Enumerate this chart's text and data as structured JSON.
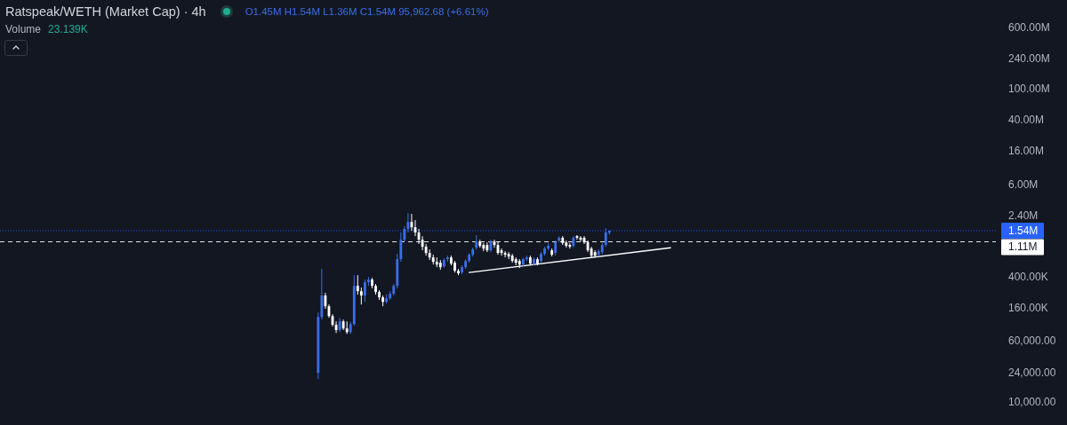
{
  "chart_data": {
    "type": "candlestick",
    "title": "Ratspeak/WETH (Market Cap) · 4h",
    "annotations": [
      "O1.45M H1.54M L1.36M C1.54M 95,962.68 (+6.61%)",
      "Volume",
      "23.139K"
    ],
    "categories": [
      null,
      null,
      null,
      null,
      null,
      null,
      null,
      null,
      null,
      null,
      null,
      null,
      null,
      null,
      null,
      null,
      null,
      null,
      null,
      null,
      null,
      null,
      null,
      null,
      null,
      null,
      null,
      null,
      null,
      null,
      null,
      null,
      null,
      null,
      null,
      null,
      null,
      null,
      null,
      null,
      null,
      null,
      null,
      null,
      null,
      null,
      null,
      null,
      null,
      null,
      null,
      null,
      null,
      null,
      null,
      null,
      null,
      null,
      null,
      null,
      null,
      null,
      null,
      null,
      null,
      null,
      null,
      null,
      null,
      null,
      null,
      null,
      null,
      null,
      null,
      null,
      null,
      null,
      null,
      null,
      null,
      null,
      null,
      null,
      null,
      null,
      null,
      null,
      null,
      null,
      null,
      null,
      null,
      null,
      null,
      null,
      null,
      null,
      null,
      null,
      null,
      null,
      null,
      null,
      null,
      null,
      null,
      null,
      null,
      null,
      null,
      null,
      null,
      null,
      null,
      null,
      null,
      null,
      null,
      null,
      null,
      null,
      null,
      null,
      null,
      null,
      null,
      null,
      null,
      null,
      null,
      null,
      null,
      null,
      null,
      null,
      null,
      null,
      null,
      null,
      null,
      null,
      null,
      null,
      null,
      null,
      null,
      null,
      null,
      null,
      null,
      null,
      null,
      null,
      null,
      null,
      null,
      null,
      null,
      null,
      null,
      null,
      null,
      null,
      null,
      null,
      null,
      null,
      null,
      null,
      null,
      null,
      null,
      null,
      null,
      null,
      null,
      null,
      null,
      null,
      null,
      null,
      null,
      null,
      null,
      null,
      null,
      null,
      null,
      null,
      null,
      null,
      null,
      null,
      null,
      null,
      null,
      null,
      null,
      null,
      null,
      null,
      null,
      null,
      null,
      null,
      null,
      null,
      null,
      null,
      null,
      null,
      null,
      null,
      null,
      null,
      null,
      null,
      null,
      null,
      null,
      null,
      null,
      null,
      null,
      null,
      null,
      null,
      null,
      null,
      null,
      null,
      null,
      null,
      null,
      null,
      null,
      null,
      null,
      null,
      null,
      null,
      null,
      null,
      null,
      null,
      null,
      null,
      null,
      null,
      null,
      null,
      null,
      null,
      null,
      null,
      null,
      null,
      null,
      null,
      null,
      null,
      null,
      null,
      null,
      null,
      null,
      null,
      null,
      null,
      null,
      null,
      null,
      null,
      null,
      null,
      null
    ],
    "ohlc": [
      null,
      null,
      null,
      null,
      null,
      null,
      null,
      null,
      null,
      null,
      null,
      null,
      null,
      null,
      null,
      null,
      null,
      null,
      null,
      null,
      null,
      null,
      null,
      null,
      null,
      null,
      null,
      null,
      null,
      null,
      null,
      null,
      null,
      null,
      null,
      null,
      null,
      null,
      null,
      null,
      null,
      null,
      null,
      null,
      null,
      null,
      null,
      null,
      null,
      null,
      null,
      null,
      null,
      null,
      null,
      null,
      null,
      null,
      null,
      null,
      null,
      null,
      null,
      null,
      null,
      null,
      null,
      null,
      null,
      null,
      null,
      null,
      null,
      null,
      null,
      null,
      null,
      null,
      null,
      null,
      null,
      null,
      null,
      null,
      null,
      null,
      null,
      null,
      [
        23600,
        139000,
        19700,
        122000
      ],
      [
        122000,
        500000,
        113000,
        229000
      ],
      [
        229000,
        247000,
        155000,
        167000
      ],
      [
        167000,
        176000,
        119000,
        125000
      ],
      [
        125000,
        132000,
        92000,
        97000
      ],
      [
        97000,
        107000,
        76000,
        83000
      ],
      [
        83000,
        119000,
        78000,
        107000
      ],
      [
        107000,
        113000,
        83000,
        87000
      ],
      [
        87000,
        107000,
        74000,
        78000
      ],
      [
        78000,
        105000,
        74000,
        99000
      ],
      [
        99000,
        416000,
        94000,
        304000
      ],
      [
        304000,
        416000,
        235000,
        260000
      ],
      [
        260000,
        289000,
        176000,
        229000
      ],
      [
        229000,
        366000,
        190000,
        338000
      ],
      [
        338000,
        395000,
        304000,
        366000
      ],
      [
        366000,
        385000,
        282000,
        304000
      ],
      [
        304000,
        321000,
        235000,
        254000
      ],
      [
        254000,
        267000,
        201000,
        217000
      ],
      [
        217000,
        229000,
        167000,
        190000
      ],
      [
        190000,
        235000,
        181000,
        211000
      ],
      [
        211000,
        260000,
        201000,
        241000
      ],
      [
        241000,
        321000,
        229000,
        304000
      ],
      [
        304000,
        778000,
        282000,
        666000
      ],
      [
        666000,
        1460000,
        616000,
        1180000
      ],
      [
        1180000,
        1750000,
        1120000,
        1620000
      ],
      [
        1620000,
        2580000,
        1460000,
        1990000
      ],
      [
        1990000,
        2520000,
        1530000,
        1700000
      ],
      [
        1700000,
        2100000,
        1310000,
        1460000
      ],
      [
        1460000,
        1620000,
        1040000,
        1180000
      ],
      [
        1180000,
        1310000,
        864000,
        959000
      ],
      [
        959000,
        1040000,
        739000,
        799000
      ],
      [
        799000,
        887000,
        649000,
        701000
      ],
      [
        701000,
        759000,
        569000,
        616000
      ],
      [
        616000,
        701000,
        526000,
        569000
      ],
      [
        600000,
        649000,
        487000,
        526000
      ],
      [
        540000,
        683000,
        513000,
        649000
      ],
      [
        666000,
        739000,
        616000,
        701000
      ],
      [
        701000,
        739000,
        555000,
        585000
      ],
      [
        600000,
        632000,
        450000,
        474000
      ],
      [
        474000,
        500000,
        416000,
        439000
      ],
      [
        450000,
        555000,
        427000,
        526000
      ],
      [
        526000,
        666000,
        500000,
        632000
      ],
      [
        632000,
        799000,
        600000,
        759000
      ],
      [
        759000,
        934000,
        720000,
        887000
      ],
      [
        934000,
        1350000,
        887000,
        1120000
      ],
      [
        1120000,
        1180000,
        934000,
        984000
      ],
      [
        1010000,
        1070000,
        842000,
        910000
      ],
      [
        1010000,
        1090000,
        820000,
        864000
      ],
      [
        864000,
        1180000,
        820000,
        1120000
      ],
      [
        1120000,
        1180000,
        934000,
        1010000
      ],
      [
        1010000,
        1120000,
        759000,
        799000
      ],
      [
        864000,
        910000,
        739000,
        799000
      ],
      [
        799000,
        842000,
        701000,
        759000
      ],
      [
        778000,
        820000,
        666000,
        720000
      ],
      [
        739000,
        778000,
        600000,
        632000
      ],
      [
        666000,
        701000,
        555000,
        600000
      ],
      [
        632000,
        666000,
        513000,
        569000
      ],
      [
        569000,
        701000,
        540000,
        666000
      ],
      [
        666000,
        739000,
        632000,
        701000
      ],
      [
        701000,
        739000,
        555000,
        585000
      ],
      [
        585000,
        701000,
        555000,
        666000
      ],
      [
        666000,
        701000,
        555000,
        585000
      ],
      [
        632000,
        820000,
        585000,
        778000
      ],
      [
        778000,
        959000,
        739000,
        910000
      ],
      [
        910000,
        1070000,
        864000,
        984000
      ],
      [
        864000,
        910000,
        720000,
        759000
      ],
      [
        799000,
        1150000,
        739000,
        1090000
      ],
      [
        1150000,
        1310000,
        1090000,
        1250000
      ],
      [
        1250000,
        1310000,
        1010000,
        1070000
      ],
      [
        1090000,
        1150000,
        934000,
        984000
      ],
      [
        1010000,
        1070000,
        910000,
        959000
      ],
      [
        984000,
        1310000,
        934000,
        1250000
      ],
      [
        1310000,
        1350000,
        1180000,
        1250000
      ],
      [
        1250000,
        1310000,
        1120000,
        1180000
      ],
      [
        1250000,
        1310000,
        1040000,
        1090000
      ],
      [
        1090000,
        1150000,
        820000,
        864000
      ],
      [
        910000,
        959000,
        701000,
        739000
      ],
      [
        820000,
        864000,
        701000,
        739000
      ],
      [
        759000,
        887000,
        720000,
        842000
      ],
      [
        820000,
        1070000,
        759000,
        1010000
      ],
      [
        1010000,
        1660000,
        959000,
        1460000
      ],
      [
        1450000,
        1540000,
        1360000,
        1540000
      ],
      null,
      null,
      null,
      null,
      null,
      null,
      null,
      null,
      null,
      null,
      null,
      null,
      null,
      null,
      null,
      null,
      null,
      null,
      null,
      null,
      null,
      null,
      null,
      null,
      null,
      null,
      null,
      null,
      null,
      null,
      null,
      null,
      null,
      null,
      null,
      null,
      null,
      null,
      null,
      null,
      null,
      null,
      null,
      null,
      null,
      null,
      null,
      null,
      null,
      null,
      null,
      null,
      null,
      null,
      null,
      null,
      null,
      null,
      null,
      null,
      null,
      null,
      null,
      null,
      null,
      null,
      null,
      null,
      null,
      null,
      null,
      null,
      null,
      null,
      null,
      null,
      null,
      null,
      null,
      null,
      null,
      null,
      null,
      null,
      null,
      null,
      null,
      null,
      null,
      null,
      null,
      null,
      null,
      null,
      null,
      null,
      null,
      null,
      null,
      null,
      null,
      null,
      null,
      null,
      null,
      null,
      null
    ],
    "colors": [
      null,
      null,
      null,
      null,
      null,
      null,
      null,
      null,
      null,
      null,
      null,
      null,
      null,
      null,
      null,
      null,
      null,
      null,
      null,
      null,
      null,
      null,
      null,
      null,
      null,
      null,
      null,
      null,
      null,
      null,
      null,
      null,
      null,
      null,
      null,
      null,
      null,
      null,
      null,
      null,
      null,
      null,
      null,
      null,
      null,
      null,
      null,
      null,
      null,
      null,
      null,
      null,
      null,
      null,
      null,
      null,
      null,
      null,
      null,
      null,
      null,
      null,
      null,
      null,
      null,
      null,
      null,
      null,
      null,
      null,
      null,
      null,
      null,
      null,
      null,
      null,
      null,
      null,
      null,
      null,
      null,
      null,
      null,
      null,
      null,
      null,
      null,
      null,
      "#3a6ee8",
      "#3a6ee8",
      "#ffffff",
      "#ffffff",
      "#ffffff",
      "#ffffff",
      "#3a6ee8",
      "#ffffff",
      "#ffffff",
      "#3a6ee8",
      "#3a6ee8",
      "#ffffff",
      "#ffffff",
      "#3a6ee8",
      "#3a6ee8",
      "#ffffff",
      "#ffffff",
      "#ffffff",
      "#ffffff",
      "#3a6ee8",
      "#3a6ee8",
      "#3a6ee8",
      "#3a6ee8",
      "#3a6ee8",
      "#3a6ee8",
      "#3a6ee8",
      "#ffffff",
      "#ffffff",
      "#ffffff",
      "#ffffff",
      "#ffffff",
      "#ffffff",
      "#ffffff",
      "#ffffff",
      "#ffffff",
      "#3a6ee8",
      "#3a6ee8",
      "#ffffff",
      "#ffffff",
      "#ffffff",
      "#3a6ee8",
      "#3a6ee8",
      "#3a6ee8",
      "#3a6ee8",
      "#3a6ee8",
      "#ffffff",
      "#ffffff",
      "#ffffff",
      "#3a6ee8",
      "#ffffff",
      "#ffffff",
      "#ffffff",
      "#ffffff",
      "#ffffff",
      "#ffffff",
      "#ffffff",
      "#ffffff",
      "#3a6ee8",
      "#3a6ee8",
      "#ffffff",
      "#3a6ee8",
      "#ffffff",
      "#3a6ee8",
      "#3a6ee8",
      "#3a6ee8",
      "#ffffff",
      "#3a6ee8",
      "#3a6ee8",
      "#ffffff",
      "#ffffff",
      "#ffffff",
      "#3a6ee8",
      "#ffffff",
      "#ffffff",
      "#ffffff",
      "#ffffff",
      "#ffffff",
      "#ffffff",
      "#3a6ee8",
      "#3a6ee8",
      "#3a6ee8",
      "#3a6ee8",
      null,
      null,
      null,
      null,
      null,
      null,
      null,
      null,
      null,
      null,
      null,
      null,
      null,
      null,
      null,
      null,
      null,
      null,
      null,
      null,
      null,
      null,
      null,
      null,
      null,
      null,
      null,
      null,
      null,
      null,
      null,
      null,
      null,
      null,
      null,
      null,
      null,
      null,
      null,
      null,
      null,
      null,
      null,
      null,
      null,
      null,
      null,
      null,
      null,
      null,
      null,
      null,
      null,
      null,
      null,
      null,
      null,
      null,
      null,
      null,
      null,
      null,
      null,
      null,
      null,
      null,
      null,
      null,
      null,
      null,
      null,
      null,
      null,
      null,
      null,
      null,
      null,
      null,
      null,
      null,
      null,
      null,
      null,
      null,
      null,
      null,
      null,
      null,
      null,
      null,
      null,
      null,
      null,
      null,
      null,
      null,
      null,
      null,
      null,
      null,
      null,
      null,
      null,
      null,
      null,
      null,
      null
    ],
    "series": [
      {
        "type": "line",
        "color": "#ffffff",
        "values": [
          null,
          null,
          null,
          null,
          null,
          null,
          null,
          null,
          null,
          null,
          null,
          null,
          null,
          null,
          null,
          null,
          null,
          null,
          null,
          null,
          null,
          null,
          null,
          null,
          null,
          null,
          null,
          null,
          null,
          null,
          null,
          null,
          null,
          null,
          null,
          null,
          null,
          null,
          null,
          null,
          null,
          null,
          null,
          null,
          null,
          null,
          null,
          null,
          null,
          null,
          null,
          null,
          null,
          null,
          null,
          null,
          null,
          null,
          null,
          null,
          null,
          null,
          null,
          null,
          null,
          null,
          null,
          null,
          null,
          null,
          null,
          null,
          null,
          null,
          null,
          null,
          null,
          null,
          null,
          null,
          null,
          null,
          null,
          null,
          null,
          null,
          null,
          null,
          null,
          null,
          null,
          null,
          null,
          null,
          null,
          null,
          null,
          null,
          null,
          null,
          null,
          null,
          null,
          null,
          null,
          null,
          null,
          null,
          null,
          null,
          null,
          null,
          null,
          null,
          null,
          null,
          null,
          null,
          null,
          null,
          null,
          null,
          null,
          null,
          null,
          null,
          null,
          null,
          null,
          null,
          450000,
          null,
          null,
          null,
          null,
          null,
          null,
          null,
          null,
          null,
          null,
          null,
          null,
          null,
          null,
          null,
          null,
          null,
          null,
          null,
          null,
          null,
          null,
          null,
          null,
          null,
          null,
          null,
          null,
          null,
          null,
          null,
          null,
          null,
          null,
          null,
          null,
          null,
          null,
          null,
          null,
          null,
          null,
          null,
          null,
          null,
          null,
          null,
          null,
          null,
          null,
          null,
          null,
          null,
          null,
          null,
          930000,
          null,
          null,
          null,
          null,
          null,
          null,
          null,
          null,
          null,
          null,
          null,
          null,
          null,
          null,
          null,
          null,
          null,
          null,
          null,
          null,
          null,
          null,
          null,
          null,
          null,
          null,
          null,
          null,
          null,
          null,
          null,
          null,
          null,
          null,
          null,
          null,
          null,
          null,
          null,
          null,
          null,
          null,
          null,
          null,
          null,
          null,
          null,
          null,
          null,
          null,
          null,
          null,
          null,
          null,
          null,
          null,
          null,
          null,
          null,
          null,
          null,
          null,
          null,
          null,
          null,
          null,
          null,
          null,
          null,
          null,
          null,
          null,
          null,
          null,
          null,
          null,
          null,
          null,
          null,
          null,
          null,
          null,
          null,
          null,
          null,
          null,
          null,
          null,
          null,
          null
        ]
      }
    ],
    "log": true,
    "ylim": [
      5100,
      1350000000
    ],
    "yticks": [
      {
        "value": 600000000,
        "label": "600.00M"
      },
      {
        "value": 240000000,
        "label": "240.00M"
      },
      {
        "value": 100000000,
        "label": "100.00M"
      },
      {
        "value": 40000000,
        "label": "40.00M"
      },
      {
        "value": 16000000,
        "label": "16.00M"
      },
      {
        "value": 6000000,
        "label": "6.00M"
      },
      {
        "value": 2400000,
        "label": "2.40M"
      },
      {
        "value": 400000,
        "label": "400.00K"
      },
      {
        "value": 160000,
        "label": "160.00K"
      },
      {
        "value": 60000,
        "label": "60,000.00"
      },
      {
        "value": 24000,
        "label": "24,000.00"
      },
      {
        "value": 10000,
        "label": "10,000.00"
      }
    ],
    "tick_labels": "y",
    "ref_lines": [
      {
        "axis": "y",
        "value": 1540000,
        "label": "1.54M",
        "color": "#2962ff",
        "line_style": "dotted"
      },
      {
        "axis": "y",
        "value": 1110000,
        "label": "1.11M",
        "color": "#ffffff",
        "line_style": "dashed"
      }
    ]
  }
}
